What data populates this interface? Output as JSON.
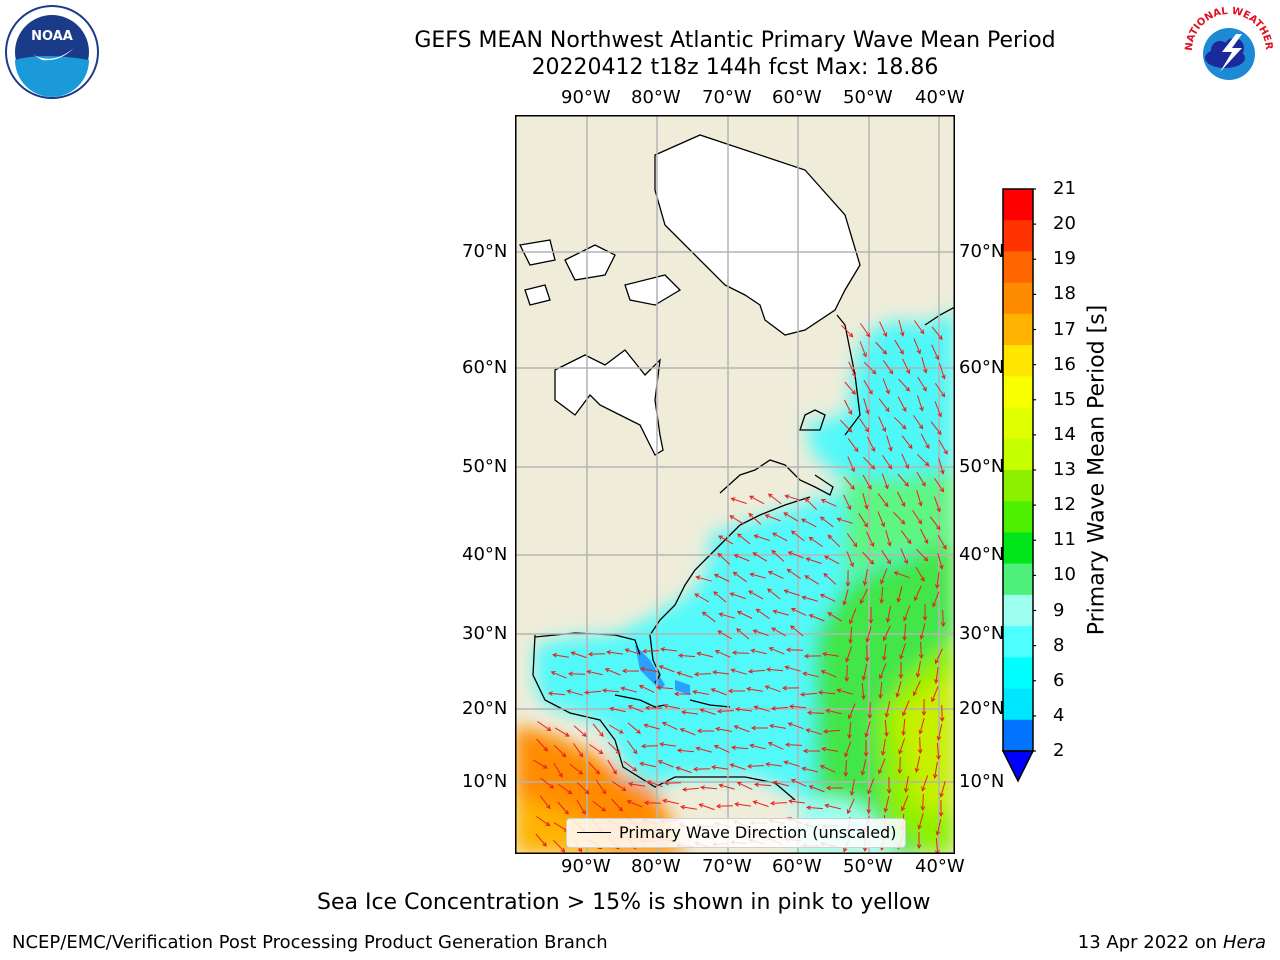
{
  "title": {
    "line1": "GEFS MEAN Northwest Atlantic Primary Wave Mean Period",
    "line2": "20220412 t18z 144h fcst   Max: 18.86"
  },
  "map": {
    "lon_labels": [
      "90°W",
      "80°W",
      "70°W",
      "60°W",
      "50°W",
      "40°W"
    ],
    "lat_labels": [
      "70°N",
      "60°N",
      "50°N",
      "40°N",
      "30°N",
      "20°N",
      "10°N"
    ],
    "land_color": "#efedda",
    "ice_land_color": "#ffffff",
    "arrow_color": "#e8211c"
  },
  "colorbar": {
    "label": "Primary Wave Mean Period [s]",
    "ticks": [
      "21",
      "20",
      "19",
      "18",
      "17",
      "16",
      "15",
      "14",
      "13",
      "12",
      "11",
      "10",
      "9",
      "8",
      "6",
      "4",
      "2"
    ],
    "colors": [
      "#ff0000",
      "#ff3300",
      "#ff6600",
      "#ff8c00",
      "#ffb300",
      "#ffe600",
      "#f7ff00",
      "#e0ff00",
      "#c6ff00",
      "#8cf000",
      "#4cf000",
      "#00e61a",
      "#4ff07a",
      "#9dfff0",
      "#4dffff",
      "#00ffff",
      "#00e6ff",
      "#0073ff"
    ],
    "under_color": "#0000ff"
  },
  "legend": {
    "label": "Primary Wave Direction (unscaled)"
  },
  "note": "Sea Ice Concentration > 15% is shown in pink to yellow",
  "footer": {
    "left": "NCEP/EMC/Verification Post Processing Product Generation Branch",
    "date": "13 Apr 2022 on ",
    "host": "Hera"
  },
  "logos": {
    "left": "NOAA",
    "right": "NATIONAL WEATHER SERVICE"
  }
}
